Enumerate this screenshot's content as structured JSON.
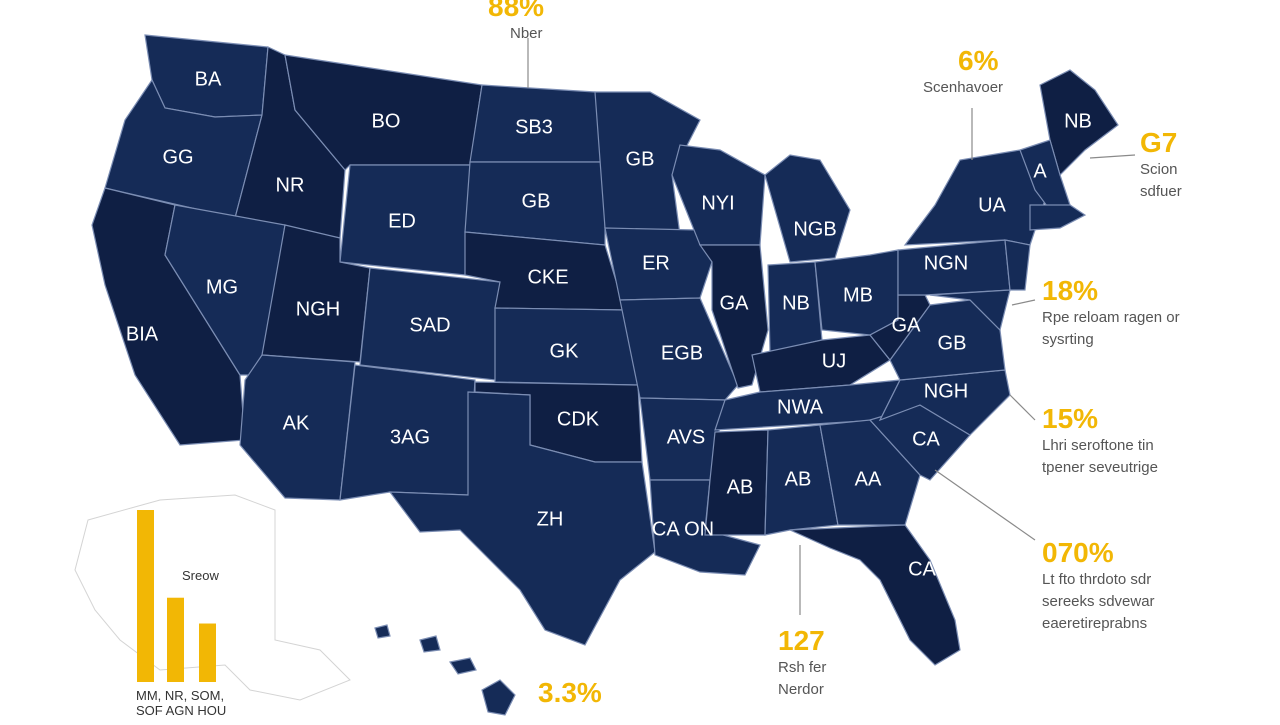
{
  "colors": {
    "map_fill": "#152b57",
    "map_fill_dark": "#0f1f44",
    "state_border": "#7b8db3",
    "accent": "#f2b705",
    "leader_line": "#8a8a8a",
    "text_dark": "#555555"
  },
  "states": [
    {
      "id": "wa",
      "label": "BA"
    },
    {
      "id": "or",
      "label": "GG"
    },
    {
      "id": "ca",
      "label": "BIA"
    },
    {
      "id": "id",
      "label": "NR"
    },
    {
      "id": "nv",
      "label": "MG"
    },
    {
      "id": "mt",
      "label": "BO"
    },
    {
      "id": "wy",
      "label": "ED"
    },
    {
      "id": "ut",
      "label": "NGH"
    },
    {
      "id": "az",
      "label": "AK"
    },
    {
      "id": "co",
      "label": "SAD"
    },
    {
      "id": "nm",
      "label": "3AG"
    },
    {
      "id": "nd",
      "label": "SB3"
    },
    {
      "id": "sd",
      "label": "GB"
    },
    {
      "id": "ne",
      "label": "CKE"
    },
    {
      "id": "ks",
      "label": "GK"
    },
    {
      "id": "ok",
      "label": "CDK"
    },
    {
      "id": "tx",
      "label": "ZH"
    },
    {
      "id": "mn",
      "label": "GB"
    },
    {
      "id": "ia",
      "label": "ER"
    },
    {
      "id": "mo",
      "label": "EGB"
    },
    {
      "id": "ar",
      "label": "AVS"
    },
    {
      "id": "la",
      "label": "CA ON"
    },
    {
      "id": "wi",
      "label": "NYI"
    },
    {
      "id": "il",
      "label": "GA"
    },
    {
      "id": "mi",
      "label": "NGB"
    },
    {
      "id": "in",
      "label": "NB"
    },
    {
      "id": "oh",
      "label": "MB"
    },
    {
      "id": "ky",
      "label": "UJ"
    },
    {
      "id": "tn",
      "label": "NWA"
    },
    {
      "id": "ms",
      "label": "AB"
    },
    {
      "id": "al",
      "label": "AB"
    },
    {
      "id": "ga",
      "label": "AA"
    },
    {
      "id": "fl",
      "label": "CA"
    },
    {
      "id": "sc",
      "label": "CA"
    },
    {
      "id": "nc",
      "label": "NGH"
    },
    {
      "id": "va",
      "label": "GB"
    },
    {
      "id": "wv",
      "label": "GA"
    },
    {
      "id": "pa",
      "label": "NGN"
    },
    {
      "id": "ny",
      "label": "UA"
    },
    {
      "id": "me",
      "label": "NB"
    },
    {
      "id": "nh",
      "label": "A"
    }
  ],
  "callouts": [
    {
      "id": "top",
      "pct": "88%",
      "desc": [
        "Nber"
      ]
    },
    {
      "id": "ne1",
      "pct": "6%",
      "desc": [
        "Scenhavoer"
      ]
    },
    {
      "id": "ne2",
      "pct": "G7",
      "desc": [
        "Scion",
        "sdfuer"
      ]
    },
    {
      "id": "e1",
      "pct": "18%",
      "desc": [
        "Rpe reloam ragen or",
        "sysrting"
      ]
    },
    {
      "id": "e2",
      "pct": "15%",
      "desc": [
        "Lhri seroftone tin",
        "tpener seveutrige"
      ]
    },
    {
      "id": "se",
      "pct": "070%",
      "desc": [
        "Lt fto thrdoto sdr",
        "sereeks sdvewar",
        "eaeretireprabns"
      ]
    },
    {
      "id": "s1",
      "pct": "127",
      "desc": [
        "Rsh fer",
        "Nerdor"
      ]
    },
    {
      "id": "s2",
      "pct": "3.3%",
      "desc": []
    }
  ],
  "inset": {
    "label": "Sreow",
    "bar_values": [
      100,
      49,
      34
    ],
    "caption": [
      "MM, NR, SOM,",
      "SOF AGN HOU"
    ]
  }
}
